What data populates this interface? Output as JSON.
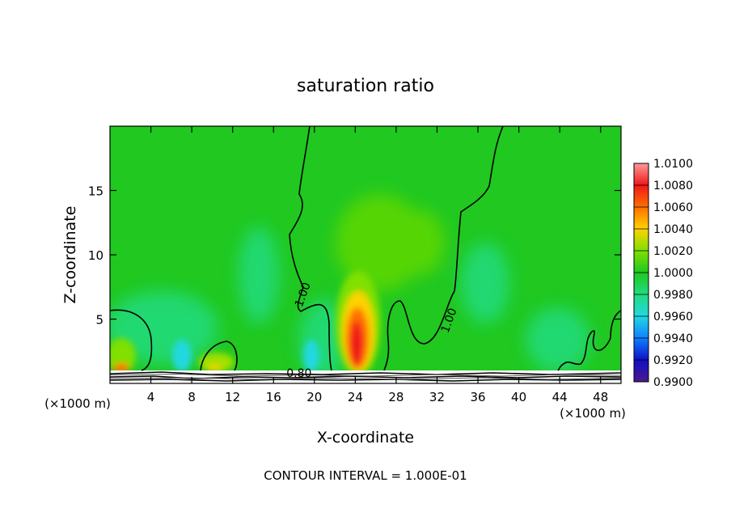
{
  "chart_data": {
    "type": "heatmap",
    "title": "saturation ratio",
    "xlabel": "X-coordinate",
    "ylabel": "Z-coordinate",
    "x_unit_left": "(×1000 m)",
    "x_unit_right": "(×1000 m)",
    "xlim": [
      0,
      50
    ],
    "ylim": [
      0,
      20
    ],
    "x_ticks": [
      4,
      8,
      12,
      16,
      20,
      24,
      28,
      32,
      36,
      40,
      44,
      48
    ],
    "y_ticks": [
      5,
      10,
      15
    ],
    "colorbar": {
      "levels": [
        "1.0100",
        "1.0080",
        "1.0060",
        "1.0040",
        "1.0020",
        "1.0000",
        "0.9980",
        "0.9960",
        "0.9940",
        "0.9920",
        "0.9900"
      ],
      "colors": [
        "#ff9a9a",
        "#f01818",
        "#ff7000",
        "#ffd200",
        "#80e000",
        "#20c820",
        "#20dc80",
        "#20d8e0",
        "#1080ff",
        "#1010c8",
        "#4a1a8a"
      ]
    },
    "contour_labels": [
      {
        "text": "1.00",
        "x": 19.2,
        "y": 6.8
      },
      {
        "text": "1.00",
        "x": 33.5,
        "y": 4.8
      },
      {
        "text": "0.80",
        "x": 18.5,
        "y": 0.5
      }
    ],
    "footnote": "CONTOUR INTERVAL = 1.000E-01"
  }
}
